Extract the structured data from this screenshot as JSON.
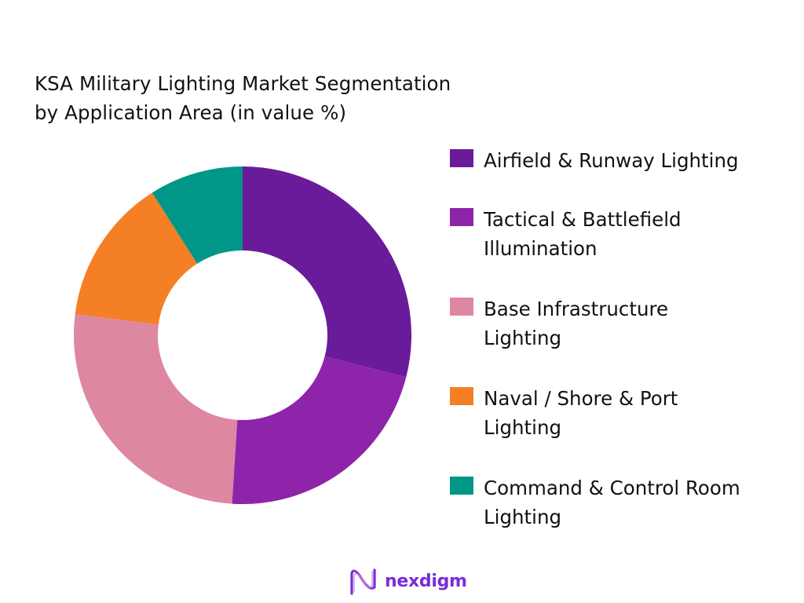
{
  "title": {
    "line1": "KSA Military Lighting Market Segmentation",
    "line2": "by Application Area (in value %)"
  },
  "legend": {
    "items": [
      {
        "label_line1": "Airfield & Runway Lighting",
        "label_line2": "",
        "color": "#6a1b9a"
      },
      {
        "label_line1": "Tactical & Battlefield",
        "label_line2": "Illumination",
        "color": "#8e24aa"
      },
      {
        "label_line1": "Base Infrastructure",
        "label_line2": "Lighting",
        "color": "#de87a0"
      },
      {
        "label_line1": "Naval / Shore & Port",
        "label_line2": "Lighting",
        "color": "#f47f24"
      },
      {
        "label_line1": "Command & Control Room",
        "label_line2": "Lighting",
        "color": "#009688"
      }
    ]
  },
  "logo": {
    "text": "nexdigm",
    "icon": "wave-n-icon"
  },
  "chart_data": {
    "type": "pie",
    "variant": "donut",
    "title": "KSA Military Lighting Market Segmentation by Application Area (in value %)",
    "categories": [
      "Airfield & Runway Lighting",
      "Tactical & Battlefield Illumination",
      "Base Infrastructure Lighting",
      "Naval / Shore & Port Lighting",
      "Command & Control Room Lighting"
    ],
    "values": [
      29,
      22,
      26,
      14,
      9
    ],
    "colors": [
      "#6a1b9a",
      "#8e24aa",
      "#de87a0",
      "#f47f24",
      "#009688"
    ],
    "unit": "%",
    "data_labels": false,
    "legend_position": "right",
    "start_angle_deg": 0,
    "direction": "clockwise"
  }
}
